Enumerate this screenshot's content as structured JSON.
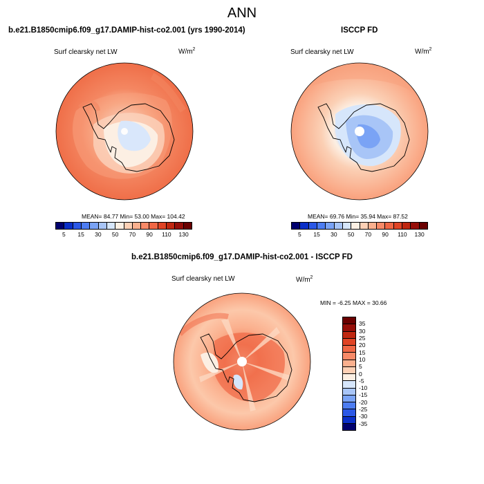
{
  "page": {
    "title": "ANN"
  },
  "panels": {
    "model": {
      "heading": "b.e21.B1850cmip6.f09_g17.DAMIP-hist-co2.001 (yrs 1990-2014)",
      "variable": "Surf clearsky net LW",
      "units_base": "W/m",
      "units_exp": "2",
      "stats": "MEAN=  84.77  Min=  53.00  Max= 104.42"
    },
    "obs": {
      "heading": "ISCCP FD",
      "variable": "Surf clearsky net LW",
      "units_base": "W/m",
      "units_exp": "2",
      "stats": "MEAN=  69.76  Min=  35.94  Max=  87.52"
    },
    "diff": {
      "heading": "b.e21.B1850cmip6.f09_g17.DAMIP-hist-co2.001 - ISCCP FD",
      "variable": "Surf clearsky net LW",
      "units_base": "W/m",
      "units_exp": "2",
      "stats": "MIN =  -6.25 MAX =  30.66"
    }
  },
  "colorbar_abs": {
    "colors": [
      "#00006e",
      "#0a2fc8",
      "#2b58e6",
      "#4d7df2",
      "#7aa3f5",
      "#a8c5f7",
      "#d6e6fb",
      "#fcefe3",
      "#fdd0b5",
      "#fbb08e",
      "#f88a68",
      "#f06745",
      "#e04425",
      "#c02710",
      "#960e08",
      "#6a0000"
    ],
    "labels": [
      "5",
      "15",
      "30",
      "50",
      "70",
      "90",
      "110",
      "130"
    ]
  },
  "colorbar_diff": {
    "colors": [
      "#6a0000",
      "#960e08",
      "#c02710",
      "#e04425",
      "#f06745",
      "#f88a68",
      "#fbb08e",
      "#fdd0b5",
      "#fcefe3",
      "#d6e6fb",
      "#a8c5f7",
      "#7aa3f5",
      "#4d7df2",
      "#2b58e6",
      "#0a2fc8",
      "#00006e"
    ],
    "labels": [
      "35",
      "30",
      "25",
      "20",
      "15",
      "10",
      "5",
      "0",
      "-5",
      "-10",
      "-15",
      "-20",
      "-25",
      "-30",
      "-35"
    ]
  }
}
